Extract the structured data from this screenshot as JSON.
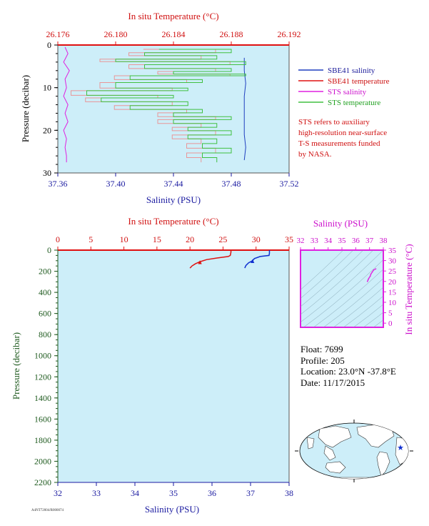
{
  "chart_data": [
    {
      "type": "line",
      "title": "",
      "x_top": {
        "label": "In situ Temperature (°C)",
        "range": [
          26.176,
          26.192
        ],
        "ticks": [
          "26.176",
          "26.180",
          "26.184",
          "26.188",
          "26.192"
        ]
      },
      "x_bottom": {
        "label": "Salinity (PSU)",
        "range": [
          37.36,
          37.52
        ],
        "ticks": [
          "37.36",
          "37.40",
          "37.44",
          "37.48",
          "37.52"
        ]
      },
      "y": {
        "label": "Pressure (decibar)",
        "range": [
          0,
          30
        ],
        "reversed": true,
        "ticks": [
          "0",
          "10",
          "20",
          "30"
        ]
      },
      "legend_position": "right",
      "series": [
        {
          "name": "SBE41 salinity",
          "color": "#1f3fbf",
          "axis": "salinity",
          "points": [
            [
              37.489,
              3
            ],
            [
              37.489,
              6
            ],
            [
              37.49,
              9
            ],
            [
              37.489,
              12
            ],
            [
              37.489,
              15
            ],
            [
              37.489,
              18
            ],
            [
              37.489,
              21
            ],
            [
              37.49,
              24
            ],
            [
              37.489,
              27
            ]
          ]
        },
        {
          "name": "SBE41 temperature",
          "color": "#e01010",
          "axis": "temperature",
          "points": [
            [
              26.176,
              0
            ],
            [
              26.192,
              0
            ]
          ]
        },
        {
          "name": "STS salinity",
          "color": "#e020e0",
          "axis": "salinity",
          "points": [
            [
              37.365,
              0.5
            ],
            [
              37.367,
              2
            ],
            [
              37.364,
              4
            ],
            [
              37.368,
              6
            ],
            [
              37.365,
              8
            ],
            [
              37.366,
              10
            ],
            [
              37.364,
              12
            ],
            [
              37.367,
              14
            ],
            [
              37.365,
              16
            ],
            [
              37.367,
              18
            ],
            [
              37.364,
              20
            ],
            [
              37.366,
              22
            ],
            [
              37.365,
              24
            ],
            [
              37.366,
              26
            ],
            [
              37.366,
              27.5
            ]
          ]
        },
        {
          "name": "STS temperature",
          "color": "#40c040",
          "axis": "temperature",
          "points": [
            [
              26.183,
              1
            ],
            [
              26.188,
              1.8
            ],
            [
              26.182,
              2.5
            ],
            [
              26.187,
              3.3
            ],
            [
              26.18,
              3.9
            ],
            [
              26.189,
              4.6
            ],
            [
              26.182,
              5.5
            ],
            [
              26.188,
              6.2
            ],
            [
              26.184,
              6.8
            ],
            [
              26.189,
              7.2
            ],
            [
              26.181,
              8.1
            ],
            [
              26.186,
              8.8
            ],
            [
              26.18,
              10.1
            ],
            [
              26.185,
              10.7
            ],
            [
              26.178,
              11.8
            ],
            [
              26.184,
              12.4
            ],
            [
              26.179,
              13.3
            ],
            [
              26.185,
              14.2
            ],
            [
              26.181,
              15.1
            ],
            [
              26.186,
              15.9
            ],
            [
              26.184,
              16.8
            ],
            [
              26.188,
              17.5
            ],
            [
              26.184,
              18.4
            ],
            [
              26.187,
              19.3
            ],
            [
              26.185,
              20.1
            ],
            [
              26.188,
              21.1
            ],
            [
              26.185,
              22.0
            ],
            [
              26.187,
              23.1
            ],
            [
              26.186,
              24.2
            ],
            [
              26.188,
              25.3
            ],
            [
              26.186,
              26.4
            ],
            [
              26.187,
              27.5
            ]
          ]
        }
      ],
      "annotation": "STS refers to auxiliary high-resolution near-surface T-S measurements funded by NASA."
    },
    {
      "type": "line",
      "title": "",
      "x_top": {
        "label": "In situ Temperature (°C)",
        "range": [
          0,
          35
        ],
        "ticks": [
          "0",
          "5",
          "10",
          "15",
          "20",
          "25",
          "30",
          "35"
        ]
      },
      "x_bottom": {
        "label": "Salinity (PSU)",
        "range": [
          32,
          38
        ],
        "ticks": [
          "32",
          "33",
          "34",
          "35",
          "36",
          "37",
          "38"
        ]
      },
      "y": {
        "label": "Pressure (decibar)",
        "range": [
          0,
          2200
        ],
        "reversed": true,
        "ticks": [
          "0",
          "200",
          "400",
          "600",
          "800",
          "1000",
          "1200",
          "1400",
          "1600",
          "1800",
          "2000",
          "2200"
        ]
      },
      "series": [
        {
          "name": "Temperature",
          "color": "#e01010",
          "axis": "temperature",
          "points": [
            [
              26.2,
              0
            ],
            [
              26.2,
              20
            ],
            [
              26.1,
              50
            ],
            [
              25.8,
              60
            ],
            [
              24.0,
              75
            ],
            [
              22.5,
              90
            ],
            [
              21.5,
              110
            ],
            [
              20.8,
              130
            ],
            [
              20.3,
              150
            ],
            [
              20.0,
              170
            ]
          ]
        },
        {
          "name": "Salinity",
          "color": "#1030d0",
          "axis": "salinity",
          "points": [
            [
              37.49,
              0
            ],
            [
              37.49,
              30
            ],
            [
              37.48,
              50
            ],
            [
              37.25,
              60
            ],
            [
              37.1,
              80
            ],
            [
              37.05,
              100
            ],
            [
              36.95,
              120
            ],
            [
              36.88,
              145
            ],
            [
              36.85,
              170
            ]
          ]
        }
      ]
    },
    {
      "type": "scatter",
      "title": "",
      "x": {
        "label": "Salinity (PSU)",
        "range": [
          32,
          38
        ],
        "ticks": [
          "32",
          "33",
          "34",
          "35",
          "36",
          "37",
          "38"
        ]
      },
      "y": {
        "label": "In situ Temperature (°C)",
        "range": [
          -2,
          35
        ],
        "ticks": [
          "0",
          "5",
          "10",
          "15",
          "20",
          "25",
          "30",
          "35"
        ]
      },
      "points": [
        [
          36.85,
          20.0
        ],
        [
          36.9,
          20.8
        ],
        [
          36.95,
          21.5
        ],
        [
          37.05,
          22.5
        ],
        [
          37.1,
          23.5
        ],
        [
          37.2,
          24.5
        ],
        [
          37.3,
          25.5
        ],
        [
          37.45,
          26.0
        ]
      ]
    }
  ],
  "float_info": {
    "float": "Float:  7699",
    "profile": "Profile:  205",
    "location": "Location:  23.0°N  -37.8°E",
    "date": "Date:  11/17/2015"
  },
  "map": {
    "marker": "star",
    "marker_lat": 23.0,
    "marker_lon": -37.8
  },
  "footer": "A4NT72004/R000074"
}
